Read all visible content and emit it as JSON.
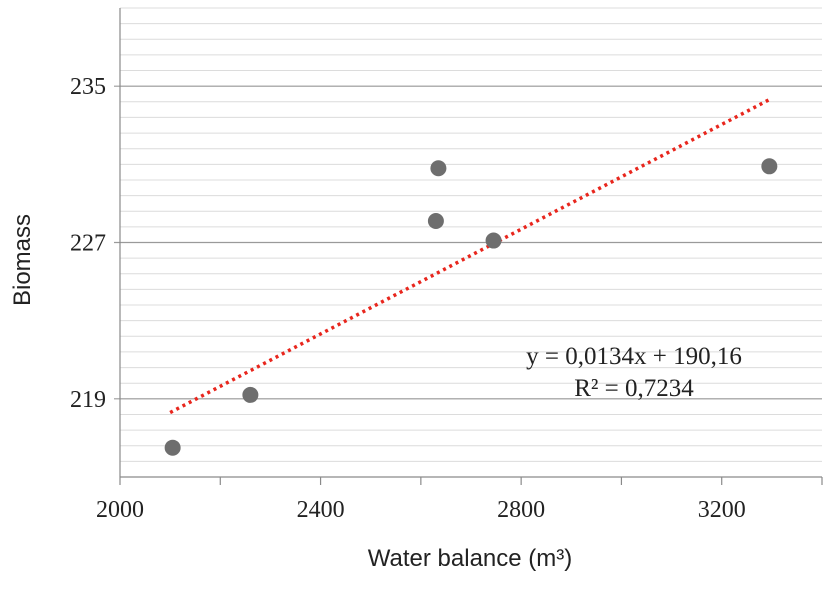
{
  "chart_data": {
    "type": "scatter",
    "xlabel": "Water balance (m³)",
    "ylabel": "Biomass",
    "xlim": [
      2000,
      3400
    ],
    "ylim": [
      215,
      239
    ],
    "x_ticks": [
      2000,
      2400,
      2800,
      3200
    ],
    "x_tick_labels": [
      "2000",
      "2400",
      "2800",
      "3200"
    ],
    "y_ticks": [
      219,
      227,
      235
    ],
    "y_tick_labels": [
      "219",
      "227",
      "235"
    ],
    "minor_gridline_step": 0.8,
    "grid": true,
    "series": [
      {
        "x": [
          2105,
          2260,
          2630,
          2635,
          2745,
          3295
        ],
        "y": [
          216.5,
          219.2,
          228.1,
          230.8,
          227.1,
          230.9
        ],
        "color": "#6e6e6e"
      }
    ],
    "trendline": {
      "slope": 0.0134,
      "intercept": 190.16,
      "x_range": [
        2100,
        3300
      ],
      "color": "#e8261d",
      "style": "dotted"
    },
    "annotations": {
      "equation": "y = 0,0134x + 190,16",
      "r_squared": "R² = 0,7234"
    }
  }
}
